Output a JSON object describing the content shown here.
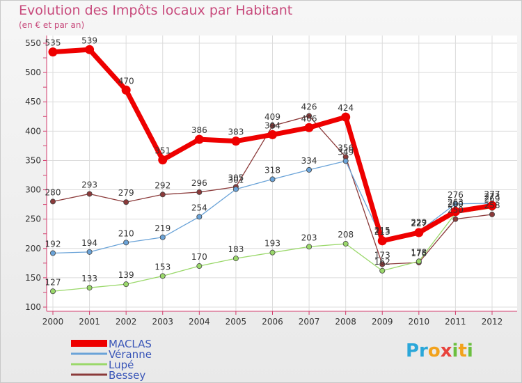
{
  "title": "Evolution des Impôts locaux par Habitant",
  "subtitle": "(en € et par an)",
  "logo_text": "Proxiti",
  "chart_data": {
    "type": "line",
    "title": "Evolution des Impôts locaux par Habitant",
    "subtitle": "(en € et par an)",
    "xlabel": "",
    "ylabel": "",
    "x": [
      "2000",
      "2001",
      "2002",
      "2003",
      "2004",
      "2005",
      "2006",
      "2007",
      "2008",
      "2009",
      "2010",
      "2011",
      "2012"
    ],
    "ylim": [
      100,
      550
    ],
    "yticks": [
      100,
      150,
      200,
      250,
      300,
      350,
      400,
      450,
      500,
      550
    ],
    "grid": true,
    "legend_position": "bottom-left",
    "series": [
      {
        "name": "MACLAS",
        "color": "#ee0000",
        "values": [
          535,
          539,
          470,
          351,
          386,
          383,
          394,
          406,
          424,
          213,
          227,
          263,
          273
        ],
        "labels": [
          "535",
          "539",
          "470",
          "351",
          "386",
          "383",
          "394",
          "406",
          "424",
          "213",
          "227",
          "263",
          "273"
        ]
      },
      {
        "name": "Véranne",
        "color": "#6aa3d8",
        "values": [
          192,
          194,
          210,
          219,
          254,
          301,
          318,
          334,
          349,
          215,
          229,
          276,
          277
        ],
        "labels": [
          "192",
          "194",
          "210",
          "219",
          "254",
          "301",
          "318",
          "334",
          "349",
          "215",
          "229",
          "276",
          "277"
        ]
      },
      {
        "name": "Lupé",
        "color": "#9ad86a",
        "values": [
          127,
          133,
          139,
          153,
          170,
          183,
          193,
          203,
          208,
          162,
          178,
          260,
          269
        ],
        "labels": [
          "127",
          "133",
          "139",
          "153",
          "170",
          "183",
          "193",
          "203",
          "208",
          "162",
          "178",
          "260",
          "269"
        ]
      },
      {
        "name": "Bessey",
        "color": "#8b3a3a",
        "values": [
          280,
          293,
          279,
          292,
          296,
          305,
          409,
          426,
          356,
          173,
          176,
          250,
          258
        ],
        "labels": [
          "280",
          "293",
          "279",
          "292",
          "296",
          "305",
          "409",
          "426",
          "356",
          "173",
          "176",
          "250",
          "258"
        ]
      }
    ]
  }
}
